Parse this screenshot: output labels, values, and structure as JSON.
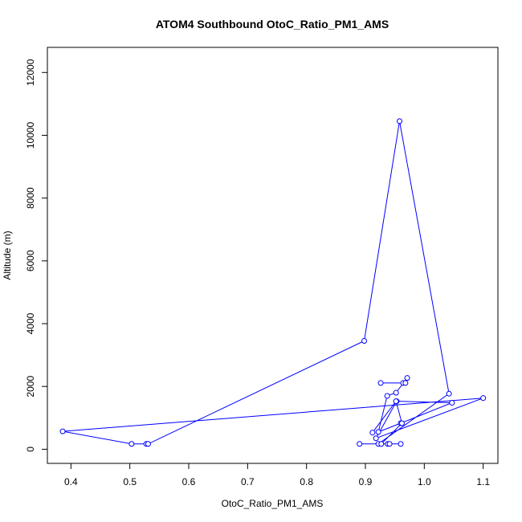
{
  "chart_data": {
    "type": "line",
    "title": "ATOM4 Southbound OtoC_Ratio_PM1_AMS",
    "xlabel": "OtoC_Ratio_PM1_AMS",
    "ylabel": "Altitude (m)",
    "xlim": [
      0.36,
      1.125
    ],
    "ylim": [
      -450,
      12800
    ],
    "x_ticks": [
      0.4,
      0.5,
      0.6,
      0.7,
      0.8,
      0.9,
      1.0,
      1.1
    ],
    "x_tick_labels": [
      "0.4",
      "0.5",
      "0.6",
      "0.7",
      "0.8",
      "0.9",
      "1.0",
      "1.1"
    ],
    "y_ticks": [
      0,
      2000,
      4000,
      6000,
      8000,
      10000,
      12000
    ],
    "y_tick_labels": [
      "0",
      "2000",
      "4000",
      "6000",
      "8000",
      "10000",
      "12000"
    ],
    "grid": false,
    "colors": {
      "series": "#0000ff",
      "axes": "#000000"
    },
    "series": [
      {
        "marker": "open-circle",
        "points": [
          [
            0.926,
            2110
          ],
          [
            0.964,
            2110
          ],
          [
            0.968,
            2110
          ],
          [
            0.971,
            2270
          ],
          [
            0.952,
            1800
          ],
          [
            0.937,
            1700
          ],
          [
            0.922,
            550
          ],
          [
            0.96,
            830
          ],
          [
            1.047,
            1480
          ],
          [
            0.953,
            1530
          ],
          [
            0.918,
            350
          ],
          [
            1.1,
            1630
          ],
          [
            0.386,
            570
          ],
          [
            0.503,
            170
          ],
          [
            0.528,
            170
          ],
          [
            0.531,
            170
          ],
          [
            0.898,
            3450
          ],
          [
            0.958,
            10450
          ],
          [
            1.042,
            1770
          ],
          [
            0.922,
            170
          ],
          [
            0.938,
            170
          ],
          [
            0.941,
            170
          ],
          [
            0.96,
            170
          ],
          [
            0.89,
            170
          ],
          [
            0.927,
            170
          ],
          [
            0.962,
            830
          ],
          [
            0.952,
            1530
          ],
          [
            0.912,
            530
          ]
        ]
      }
    ]
  }
}
